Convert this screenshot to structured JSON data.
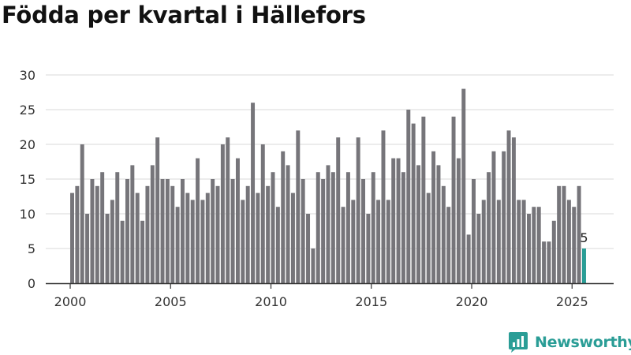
{
  "title": "Födda per kvartal i Hällefors",
  "brand": {
    "name": "Newsworthy",
    "icon": "newsworthy-logo-icon"
  },
  "colors": {
    "bar": "#76757a",
    "highlight": "#2a9d96",
    "grid": "#d9d9d9",
    "axis": "#333333",
    "brand": "#2a9d96"
  },
  "chart_data": {
    "type": "bar",
    "title": "Födda per kvartal i Hällefors",
    "xlabel": "",
    "ylabel": "",
    "x_ticks": [
      "2000",
      "2005",
      "2010",
      "2015",
      "2020",
      "2025"
    ],
    "y_ticks": [
      0,
      5,
      10,
      15,
      20,
      25,
      30
    ],
    "ylim": [
      0,
      30
    ],
    "grid": true,
    "first_period": "2000 Q1",
    "last_period": "2025 Q3",
    "values": [
      13,
      14,
      20,
      10,
      15,
      14,
      16,
      10,
      12,
      16,
      9,
      15,
      17,
      13,
      9,
      14,
      17,
      21,
      15,
      15,
      14,
      11,
      15,
      13,
      12,
      18,
      12,
      13,
      15,
      14,
      20,
      21,
      15,
      18,
      12,
      14,
      26,
      13,
      20,
      14,
      16,
      11,
      19,
      17,
      13,
      22,
      15,
      10,
      5,
      16,
      15,
      17,
      16,
      21,
      11,
      16,
      12,
      21,
      15,
      10,
      16,
      12,
      22,
      12,
      18,
      18,
      16,
      25,
      23,
      17,
      24,
      13,
      19,
      17,
      14,
      11,
      24,
      18,
      28,
      7,
      15,
      10,
      12,
      16,
      19,
      12,
      19,
      22,
      21,
      12,
      12,
      10,
      11,
      11,
      6,
      6,
      9,
      14,
      14,
      12,
      11,
      14,
      5
    ],
    "highlight": {
      "period": "2025 Q3",
      "value": 5,
      "label": "5"
    }
  }
}
